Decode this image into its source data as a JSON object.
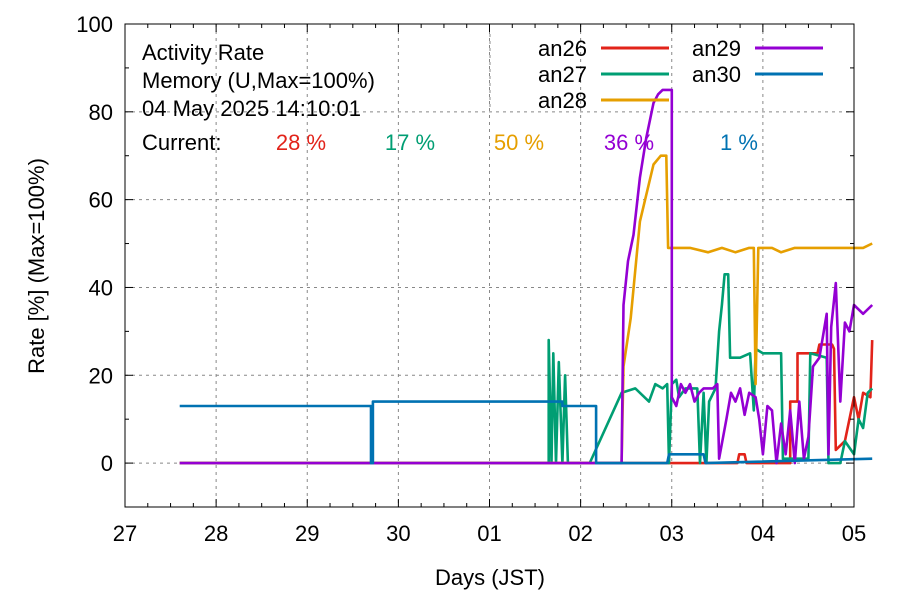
{
  "header": {
    "title_lines": [
      "Activity Rate",
      "Memory (U,Max=100%)",
      "04 May 2025 14:10:01"
    ],
    "current_label": "Current:"
  },
  "colors": {
    "an26": "#e2231a",
    "an27": "#009e73",
    "an28": "#e69f00",
    "an29": "#9400d3",
    "an30": "#0072b2"
  },
  "chart_data": {
    "type": "line",
    "xlabel": "Days (JST)",
    "ylabel": "Rate [%]  (Max=100%)",
    "x_unit": "day index (0 = 27 Apr 2025, 00:00 JST)",
    "xlim": [
      0,
      8
    ],
    "ylim": [
      -10,
      100
    ],
    "x_tick_labels": [
      "27",
      "28",
      "29",
      "30",
      "01",
      "02",
      "03",
      "04",
      "05"
    ],
    "y_ticks": [
      0,
      20,
      40,
      60,
      80,
      100
    ],
    "grid": true,
    "legend_position": "top-right",
    "series": [
      {
        "name": "an26",
        "current": "28 %",
        "points": [
          [
            0.6,
            0
          ],
          [
            6.72,
            0
          ],
          [
            6.74,
            2
          ],
          [
            6.8,
            2
          ],
          [
            6.82,
            0
          ],
          [
            7.3,
            0
          ],
          [
            7.3,
            14
          ],
          [
            7.38,
            14
          ],
          [
            7.38,
            25
          ],
          [
            7.6,
            25
          ],
          [
            7.62,
            27
          ],
          [
            7.76,
            27
          ],
          [
            7.78,
            26
          ],
          [
            7.8,
            3
          ],
          [
            7.9,
            5
          ],
          [
            8.0,
            15
          ],
          [
            8.05,
            10
          ],
          [
            8.1,
            16
          ],
          [
            8.18,
            15
          ],
          [
            8.2,
            28
          ]
        ]
      },
      {
        "name": "an27",
        "current": "17 %",
        "points": [
          [
            0.6,
            0
          ],
          [
            4.65,
            0
          ],
          [
            4.65,
            28
          ],
          [
            4.68,
            0
          ],
          [
            4.7,
            25
          ],
          [
            4.73,
            0
          ],
          [
            4.76,
            23
          ],
          [
            4.8,
            0
          ],
          [
            4.83,
            20
          ],
          [
            4.86,
            0
          ],
          [
            5.1,
            0
          ],
          [
            5.45,
            16
          ],
          [
            5.6,
            17
          ],
          [
            5.75,
            14
          ],
          [
            5.82,
            18
          ],
          [
            5.9,
            17
          ],
          [
            5.95,
            18
          ],
          [
            5.97,
            0
          ],
          [
            6.0,
            18
          ],
          [
            6.05,
            19
          ],
          [
            6.08,
            15
          ],
          [
            6.15,
            17
          ],
          [
            6.28,
            17
          ],
          [
            6.31,
            0
          ],
          [
            6.35,
            16
          ],
          [
            6.38,
            0
          ],
          [
            6.41,
            14
          ],
          [
            6.48,
            17
          ],
          [
            6.52,
            30
          ],
          [
            6.55,
            36
          ],
          [
            6.58,
            43
          ],
          [
            6.62,
            43
          ],
          [
            6.64,
            24
          ],
          [
            6.75,
            24
          ],
          [
            6.86,
            25
          ],
          [
            6.9,
            12
          ],
          [
            6.92,
            26
          ],
          [
            7.0,
            25
          ],
          [
            7.2,
            25
          ],
          [
            7.22,
            1
          ],
          [
            7.5,
            1
          ],
          [
            7.52,
            25
          ],
          [
            7.7,
            24
          ],
          [
            7.72,
            0
          ],
          [
            7.85,
            0
          ],
          [
            7.9,
            5
          ],
          [
            8.0,
            2
          ],
          [
            8.05,
            10
          ],
          [
            8.1,
            8
          ],
          [
            8.15,
            16
          ],
          [
            8.2,
            17
          ]
        ]
      },
      {
        "name": "an28",
        "current": "50 %",
        "points": [
          [
            0.6,
            0
          ],
          [
            5.45,
            0
          ],
          [
            5.47,
            22
          ],
          [
            5.55,
            33
          ],
          [
            5.65,
            55
          ],
          [
            5.8,
            68
          ],
          [
            5.88,
            70
          ],
          [
            5.94,
            70
          ],
          [
            5.96,
            49
          ],
          [
            6.2,
            49
          ],
          [
            6.4,
            48
          ],
          [
            6.55,
            49
          ],
          [
            6.7,
            48
          ],
          [
            6.85,
            49
          ],
          [
            6.9,
            49
          ],
          [
            6.92,
            18
          ],
          [
            6.95,
            49
          ],
          [
            7.1,
            49
          ],
          [
            7.2,
            48
          ],
          [
            7.35,
            49
          ],
          [
            7.55,
            49
          ],
          [
            7.7,
            49
          ],
          [
            7.9,
            49
          ],
          [
            8.1,
            49
          ],
          [
            8.2,
            50
          ]
        ]
      },
      {
        "name": "an29",
        "current": "36 %",
        "points": [
          [
            0.6,
            0
          ],
          [
            5.45,
            0
          ],
          [
            5.47,
            36
          ],
          [
            5.52,
            46
          ],
          [
            5.58,
            52
          ],
          [
            5.65,
            65
          ],
          [
            5.72,
            74
          ],
          [
            5.8,
            82
          ],
          [
            5.85,
            84
          ],
          [
            5.9,
            85
          ],
          [
            5.98,
            85
          ],
          [
            6.0,
            85
          ],
          [
            6.0,
            15
          ],
          [
            6.05,
            13
          ],
          [
            6.1,
            18
          ],
          [
            6.15,
            16
          ],
          [
            6.2,
            18
          ],
          [
            6.25,
            14
          ],
          [
            6.3,
            16
          ],
          [
            6.35,
            17
          ],
          [
            6.45,
            17
          ],
          [
            6.5,
            18
          ],
          [
            6.52,
            1
          ],
          [
            6.6,
            10
          ],
          [
            6.65,
            16
          ],
          [
            6.7,
            14
          ],
          [
            6.75,
            17
          ],
          [
            6.8,
            11
          ],
          [
            6.85,
            16
          ],
          [
            6.92,
            15
          ],
          [
            6.96,
            10
          ],
          [
            7.0,
            2
          ],
          [
            7.05,
            13
          ],
          [
            7.1,
            12
          ],
          [
            7.15,
            0
          ],
          [
            7.2,
            9
          ],
          [
            7.25,
            2
          ],
          [
            7.3,
            12
          ],
          [
            7.35,
            0
          ],
          [
            7.4,
            14
          ],
          [
            7.45,
            1
          ],
          [
            7.5,
            6
          ],
          [
            7.55,
            22
          ],
          [
            7.62,
            24
          ],
          [
            7.7,
            34
          ],
          [
            7.72,
            2
          ],
          [
            7.75,
            31
          ],
          [
            7.8,
            41
          ],
          [
            7.85,
            14
          ],
          [
            7.9,
            32
          ],
          [
            7.95,
            30
          ],
          [
            8.0,
            36
          ],
          [
            8.05,
            35
          ],
          [
            8.1,
            34
          ],
          [
            8.2,
            36
          ]
        ]
      },
      {
        "name": "an30",
        "current": "1 %",
        "points": [
          [
            0.6,
            13
          ],
          [
            2.7,
            13
          ],
          [
            2.7,
            0
          ],
          [
            2.72,
            0
          ],
          [
            2.72,
            14
          ],
          [
            4.8,
            14
          ],
          [
            4.8,
            13
          ],
          [
            5.17,
            13
          ],
          [
            5.17,
            0
          ],
          [
            5.95,
            0
          ],
          [
            5.97,
            2
          ],
          [
            6.35,
            2
          ],
          [
            6.37,
            0
          ],
          [
            8.2,
            1
          ]
        ]
      }
    ]
  }
}
